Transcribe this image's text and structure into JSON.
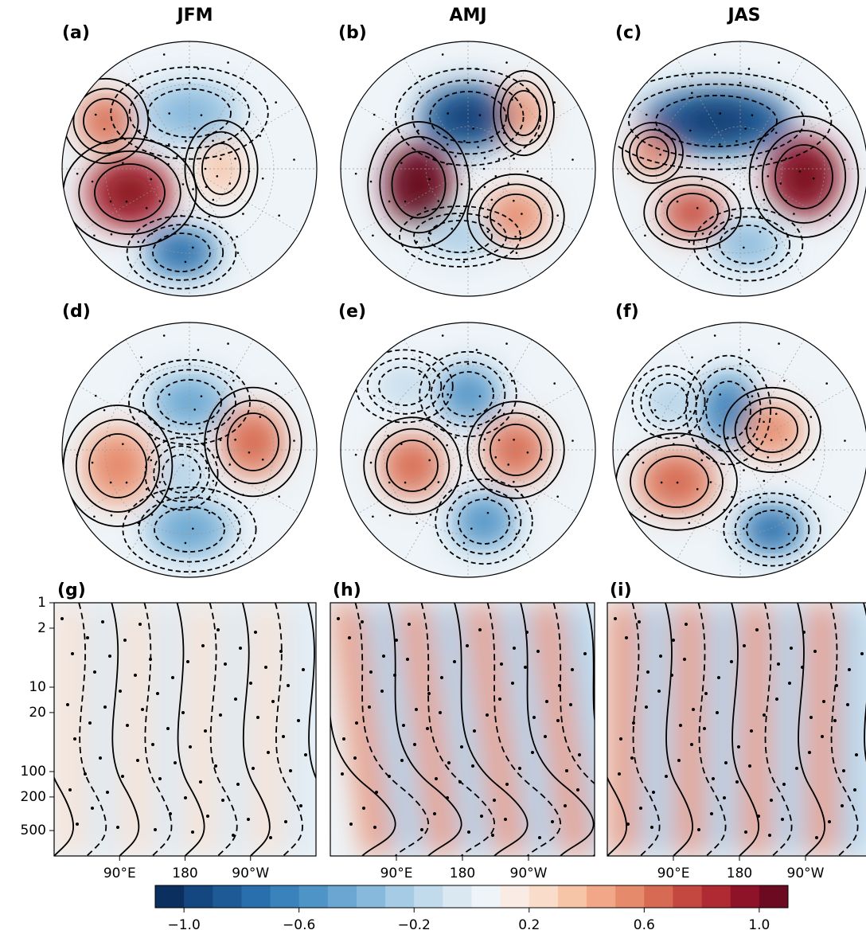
{
  "column_titles": [
    "JFM",
    "AMJ",
    "JAS"
  ],
  "panel_labels": [
    "(a)",
    "(b)",
    "(c)",
    "(d)",
    "(e)",
    "(f)",
    "(g)",
    "(h)",
    "(i)"
  ],
  "section_axes": {
    "y_scale": "log",
    "ylim": [
      1,
      1000
    ],
    "yticks": [
      1,
      2,
      10,
      20,
      100,
      200,
      500
    ],
    "xlim": [
      0,
      360
    ],
    "xticks": [
      {
        "value": 90,
        "label": "90°E"
      },
      180,
      {
        "value": 270,
        "label": "90°W"
      }
    ]
  },
  "colorbar": {
    "lim": [
      -1.1,
      1.1
    ],
    "ticks": [
      {
        "value": -1.0,
        "label": "−1.0"
      },
      {
        "value": -0.6,
        "label": "−0.6"
      },
      {
        "value": -0.2,
        "label": "−0.2"
      },
      0.2,
      0.6,
      {
        "value": 1.0,
        "label": "1.0"
      }
    ],
    "colors": [
      "#0b2f5e",
      "#14477f",
      "#1d5a96",
      "#2a6fad",
      "#3a82bb",
      "#4f94c6",
      "#6aa6d1",
      "#87b9dc",
      "#a5cbe5",
      "#c2dbec",
      "#dae8f2",
      "#eef4f8",
      "#faece4",
      "#f9dcc9",
      "#f6c4a6",
      "#f2a888",
      "#e58a6b",
      "#d66a52",
      "#c54840",
      "#af2a32",
      "#8f1328",
      "#6b0a20"
    ]
  }
}
